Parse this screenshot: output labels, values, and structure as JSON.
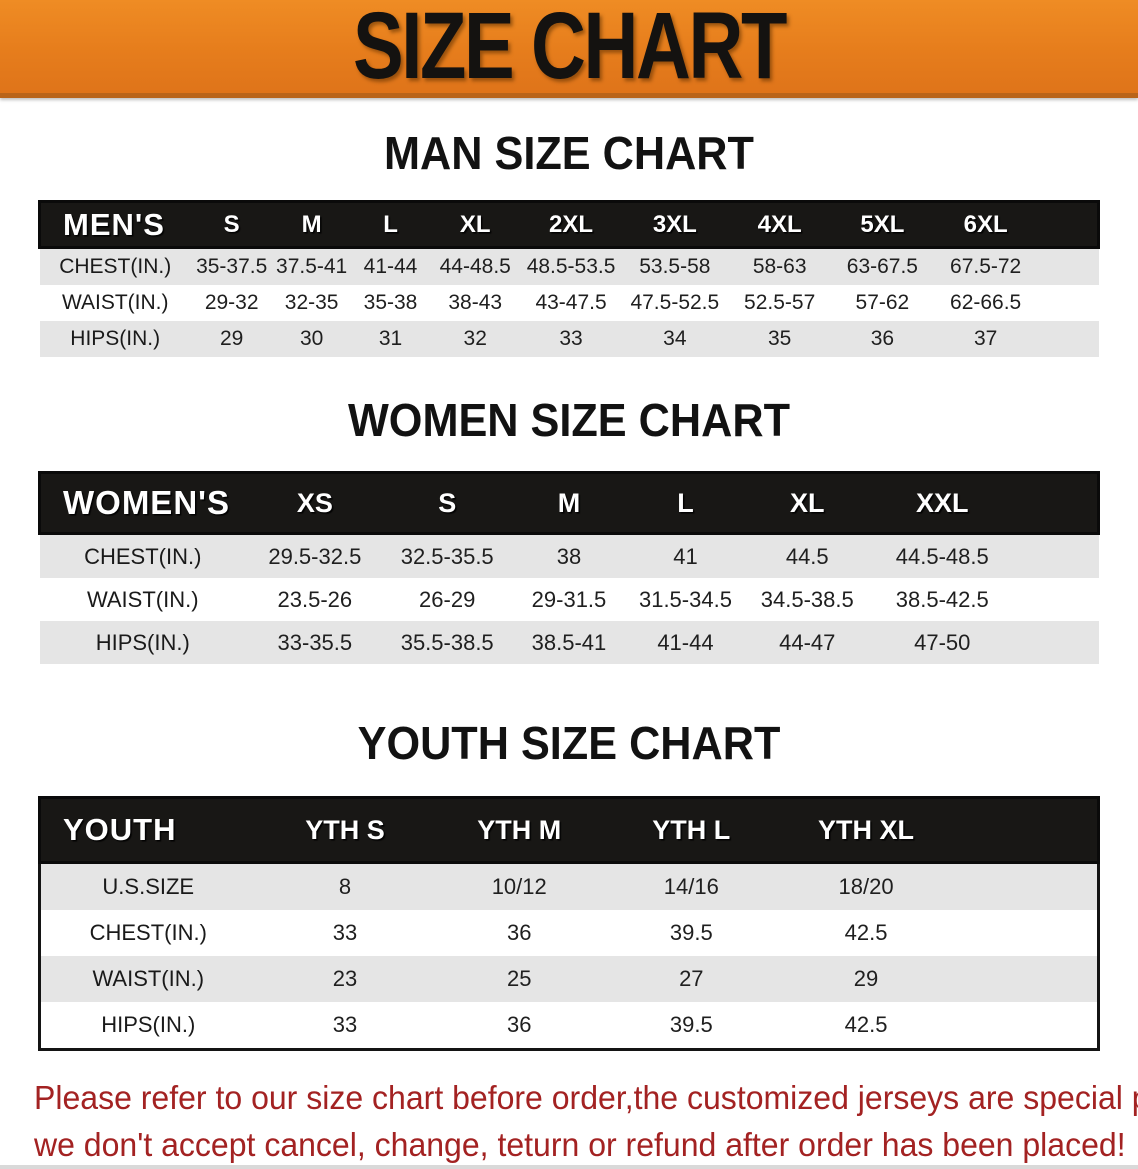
{
  "banner": {
    "title": "SIZE CHART",
    "bg_color": "#e67d1c",
    "text_color": "#141210"
  },
  "colors": {
    "header_bar": "#181715",
    "row_stripe": "#e5e5e5",
    "footer_red": "#a32222"
  },
  "sections": [
    {
      "heading": "MAN SIZE CHART",
      "header_label": "MEN'S",
      "columns": [
        "S",
        "M",
        "L",
        "XL",
        "2XL",
        "3XL",
        "4XL",
        "5XL",
        "6XL"
      ],
      "rows": [
        {
          "label": "CHEST(IN.)",
          "values": [
            "35-37.5",
            "37.5-41",
            "41-44",
            "44-48.5",
            "48.5-53.5",
            "53.5-58",
            "58-63",
            "63-67.5",
            "67.5-72"
          ]
        },
        {
          "label": "WAIST(IN.)",
          "values": [
            "29-32",
            "32-35",
            "35-38",
            "38-43",
            "43-47.5",
            "47.5-52.5",
            "52.5-57",
            "57-62",
            "62-66.5"
          ]
        },
        {
          "label": "HIPS(IN.)",
          "values": [
            "29",
            "30",
            "31",
            "32",
            "33",
            "34",
            "35",
            "36",
            "37"
          ]
        }
      ]
    },
    {
      "heading": "WOMEN SIZE CHART",
      "header_label": "WOMEN'S",
      "columns": [
        "XS",
        "S",
        "M",
        "L",
        "XL",
        "XXL"
      ],
      "rows": [
        {
          "label": "CHEST(IN.)",
          "values": [
            "29.5-32.5",
            "32.5-35.5",
            "38",
            "41",
            "44.5",
            "44.5-48.5"
          ]
        },
        {
          "label": "WAIST(IN.)",
          "values": [
            "23.5-26",
            "26-29",
            "29-31.5",
            "31.5-34.5",
            "34.5-38.5",
            "38.5-42.5"
          ]
        },
        {
          "label": "HIPS(IN.)",
          "values": [
            "33-35.5",
            "35.5-38.5",
            "38.5-41",
            "41-44",
            "44-47",
            "47-50"
          ]
        }
      ]
    },
    {
      "heading": "YOUTH SIZE CHART",
      "header_label": "YOUTH",
      "columns": [
        "YTH S",
        "YTH M",
        "YTH L",
        "YTH XL"
      ],
      "rows": [
        {
          "label": "U.S.SIZE",
          "values": [
            "8",
            "10/12",
            "14/16",
            "18/20"
          ]
        },
        {
          "label": "CHEST(IN.)",
          "values": [
            "33",
            "36",
            "39.5",
            "42.5"
          ]
        },
        {
          "label": "WAIST(IN.)",
          "values": [
            "23",
            "25",
            "27",
            "29"
          ]
        },
        {
          "label": "HIPS(IN.)",
          "values": [
            "33",
            "36",
            "39.5",
            "42.5"
          ]
        }
      ]
    }
  ],
  "footer": {
    "line1": "Please refer to our size chart before order,the customized jerseys are special products,",
    "line2": "we don't accept cancel, change, teturn or refund after order has been placed!"
  }
}
